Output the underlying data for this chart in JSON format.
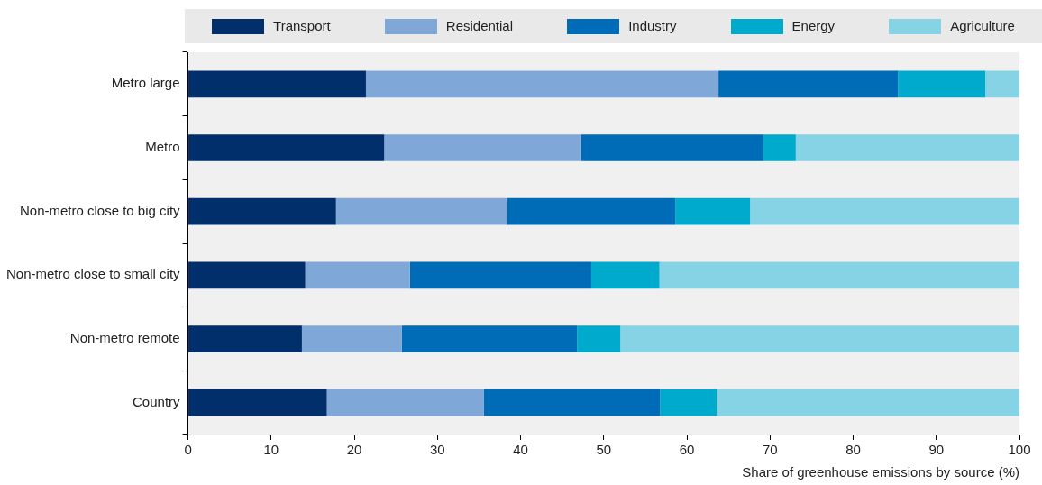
{
  "chart_data": {
    "type": "bar",
    "orientation": "horizontal",
    "stacked": true,
    "xlabel": "Share of greenhouse emissions by source (%)",
    "categories": [
      "Metro large",
      "Metro",
      "Non-metro close to big city",
      "Non-metro close to small city",
      "Non-metro remote",
      "Country"
    ],
    "series": [
      {
        "name": "Transport",
        "color": "#002f6c",
        "values": [
          21.4,
          23.6,
          17.8,
          14.1,
          13.7,
          16.7
        ]
      },
      {
        "name": "Residential",
        "color": "#7fa8d9",
        "values": [
          42.4,
          23.7,
          20.6,
          12.6,
          12.0,
          18.9
        ]
      },
      {
        "name": "Industry",
        "color": "#006bb6",
        "values": [
          21.6,
          21.9,
          20.2,
          21.8,
          21.1,
          21.2
        ]
      },
      {
        "name": "Energy",
        "color": "#00aacc",
        "values": [
          10.5,
          3.9,
          9.0,
          8.2,
          5.2,
          6.8
        ]
      },
      {
        "name": "Agriculture",
        "color": "#86d3e5",
        "values": [
          4.1,
          26.9,
          32.4,
          43.3,
          48.0,
          36.4
        ]
      }
    ],
    "xlim": [
      0,
      100
    ],
    "xticks": [
      0,
      10,
      20,
      30,
      40,
      50,
      60,
      70,
      80,
      90,
      100
    ],
    "grid": false,
    "legend": "top"
  }
}
